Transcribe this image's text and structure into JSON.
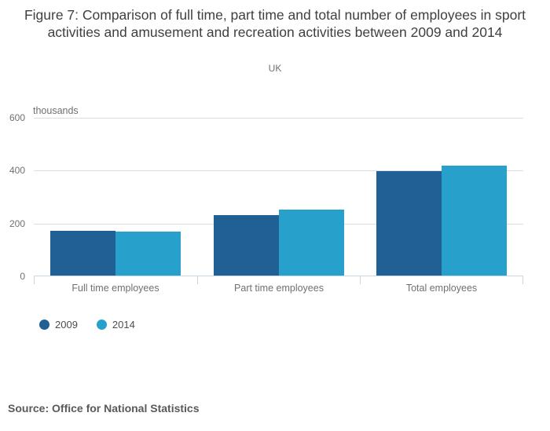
{
  "header": {
    "title": "Figure 7: Comparison of full time, part time and total number of employees in sport activities and amusement and recreation activities between 2009 and 2014",
    "subtitle": "UK"
  },
  "chart_data": {
    "type": "bar",
    "title": "Figure 7: Comparison of full time, part time and total number of employees in sport activities and amusement and recreation activities between 2009 and 2014",
    "subtitle": "UK",
    "units_label": "thousands",
    "categories": [
      "Full time employees",
      "Part time employees",
      "Total employees"
    ],
    "series": [
      {
        "name": "2009",
        "color": "#206095",
        "values": [
          168,
          228,
          396
        ]
      },
      {
        "name": "2014",
        "color": "#27a0cc",
        "values": [
          165,
          250,
          415
        ]
      }
    ],
    "ylim": [
      0,
      600
    ],
    "yticks": [
      0,
      200,
      400,
      600
    ],
    "grid": "horizontal",
    "legend_position": "bottom-left"
  },
  "footer": {
    "source": "Source: Office for National Statistics"
  },
  "colors": {
    "axis": "#c9d7e0",
    "grid": "#dcdcdc",
    "text_muted": "#707070"
  }
}
